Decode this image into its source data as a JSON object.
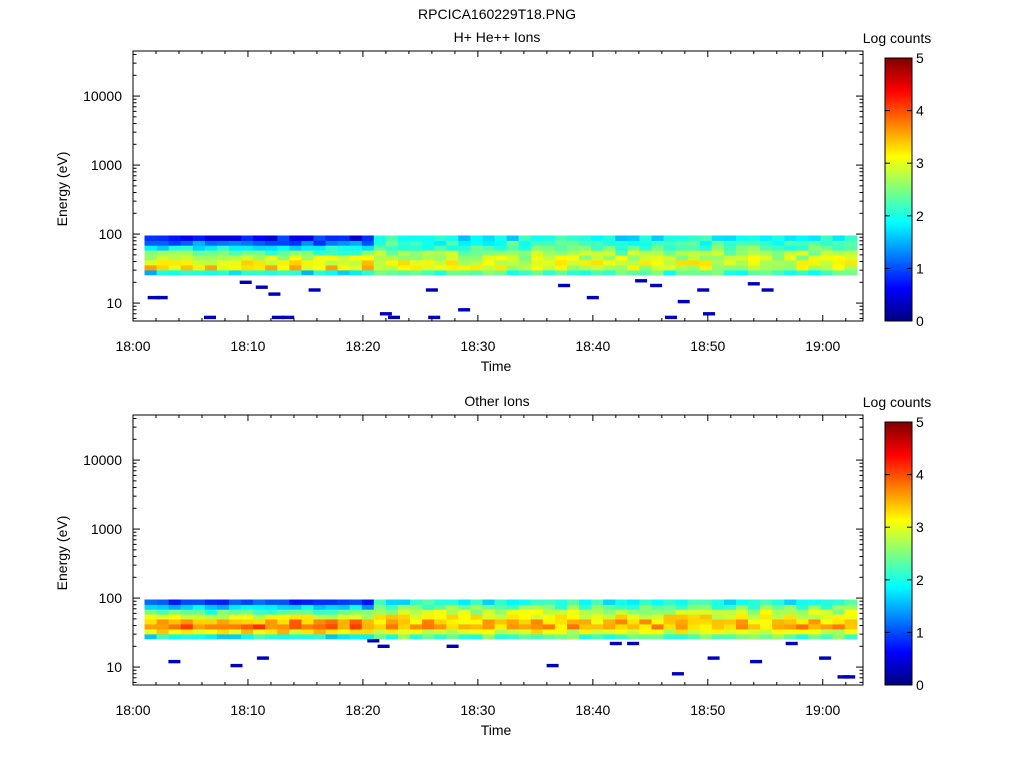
{
  "figure_title": "RPCICA160229T18.PNG",
  "colormap": {
    "stops": [
      "#00007f",
      "#0000ff",
      "#007fff",
      "#00ffff",
      "#7fff7f",
      "#ffff00",
      "#ff7f00",
      "#ff0000",
      "#7f0000"
    ]
  },
  "chart_data": [
    {
      "type": "heatmap",
      "title": "H+ He++ Ions",
      "xlabel": "Time",
      "ylabel": "Energy (eV)",
      "colorbar_label": "Log counts",
      "x_ticks": [
        "18:00",
        "18:10",
        "18:20",
        "18:30",
        "18:40",
        "18:50",
        "19:00"
      ],
      "xlim_minutes": [
        0,
        63.5
      ],
      "y_scale": "log",
      "y_ticks": [
        10,
        100,
        1000,
        10000
      ],
      "y_tick_labels": [
        "10",
        "100",
        "1000",
        "10000"
      ],
      "ylim": [
        5.5,
        45000
      ],
      "color_range": [
        0,
        5
      ],
      "colorbar_ticks": [
        "0",
        "1",
        "2",
        "3",
        "4",
        "5"
      ],
      "time_start_minutes": 1,
      "time_end_minutes": 63.5,
      "time_step_minutes": 1.05,
      "energy_bins_eV": [
        28,
        33,
        39,
        46,
        54,
        64,
        75,
        88
      ],
      "band_profile_early": [
        1.8,
        3.3,
        3.1,
        2.8,
        2.4,
        1.8,
        1.2,
        0.7
      ],
      "band_profile_late": [
        2.2,
        2.9,
        3.0,
        2.8,
        2.6,
        2.3,
        2.1,
        1.9
      ],
      "sporadic_points": [
        {
          "t": 1.8,
          "e": 12,
          "v": 0.3
        },
        {
          "t": 2.5,
          "e": 12,
          "v": 0.3
        },
        {
          "t": 6.7,
          "e": 6.2,
          "v": 0.3
        },
        {
          "t": 9.8,
          "e": 20,
          "v": 0.3
        },
        {
          "t": 11.2,
          "e": 17,
          "v": 0.3
        },
        {
          "t": 12.3,
          "e": 13.5,
          "v": 0.3
        },
        {
          "t": 12.6,
          "e": 6.2,
          "v": 0.3
        },
        {
          "t": 13.5,
          "e": 6.2,
          "v": 0.3
        },
        {
          "t": 15.8,
          "e": 15.5,
          "v": 0.3
        },
        {
          "t": 22.0,
          "e": 7.0,
          "v": 0.3
        },
        {
          "t": 22.7,
          "e": 6.2,
          "v": 0.3
        },
        {
          "t": 26.0,
          "e": 15.5,
          "v": 0.3
        },
        {
          "t": 26.2,
          "e": 6.2,
          "v": 0.3
        },
        {
          "t": 28.8,
          "e": 8.0,
          "v": 0.3
        },
        {
          "t": 37.5,
          "e": 18,
          "v": 0.3
        },
        {
          "t": 40.0,
          "e": 12,
          "v": 0.3
        },
        {
          "t": 44.2,
          "e": 21,
          "v": 0.3
        },
        {
          "t": 45.5,
          "e": 18,
          "v": 0.3
        },
        {
          "t": 46.8,
          "e": 6.2,
          "v": 0.3
        },
        {
          "t": 47.9,
          "e": 10.5,
          "v": 0.3
        },
        {
          "t": 49.6,
          "e": 15.5,
          "v": 0.3
        },
        {
          "t": 50.1,
          "e": 7.0,
          "v": 0.3
        },
        {
          "t": 54.0,
          "e": 19,
          "v": 0.3
        },
        {
          "t": 55.2,
          "e": 15.5,
          "v": 0.3
        }
      ]
    },
    {
      "type": "heatmap",
      "title": "Other Ions",
      "xlabel": "Time",
      "ylabel": "Energy (eV)",
      "colorbar_label": "Log counts",
      "x_ticks": [
        "18:00",
        "18:10",
        "18:20",
        "18:30",
        "18:40",
        "18:50",
        "19:00"
      ],
      "xlim_minutes": [
        0,
        63.5
      ],
      "y_scale": "log",
      "y_ticks": [
        10,
        100,
        1000,
        10000
      ],
      "y_tick_labels": [
        "10",
        "100",
        "1000",
        "10000"
      ],
      "ylim": [
        5.5,
        45000
      ],
      "color_range": [
        0,
        5
      ],
      "colorbar_ticks": [
        "0",
        "1",
        "2",
        "3",
        "4",
        "5"
      ],
      "time_start_minutes": 1,
      "time_end_minutes": 63.5,
      "time_step_minutes": 1.05,
      "energy_bins_eV": [
        28,
        33,
        39,
        46,
        54,
        64,
        75,
        88
      ],
      "band_profile_early": [
        1.9,
        3.2,
        3.8,
        3.6,
        3.0,
        2.3,
        1.6,
        0.9
      ],
      "band_profile_late": [
        2.3,
        3.0,
        3.5,
        3.4,
        3.1,
        2.8,
        2.4,
        2.0
      ],
      "sporadic_points": [
        {
          "t": 3.6,
          "e": 12,
          "v": 0.3
        },
        {
          "t": 9.0,
          "e": 10.5,
          "v": 0.3
        },
        {
          "t": 11.3,
          "e": 13.5,
          "v": 0.3
        },
        {
          "t": 20.9,
          "e": 24,
          "v": 0.3
        },
        {
          "t": 21.8,
          "e": 20,
          "v": 0.3
        },
        {
          "t": 27.8,
          "e": 20,
          "v": 0.3
        },
        {
          "t": 36.5,
          "e": 10.5,
          "v": 0.3
        },
        {
          "t": 42.0,
          "e": 22,
          "v": 0.3
        },
        {
          "t": 43.5,
          "e": 22,
          "v": 0.3
        },
        {
          "t": 47.4,
          "e": 8.0,
          "v": 0.3
        },
        {
          "t": 50.5,
          "e": 13.5,
          "v": 0.3
        },
        {
          "t": 54.2,
          "e": 12,
          "v": 0.3
        },
        {
          "t": 57.3,
          "e": 22,
          "v": 0.3
        },
        {
          "t": 60.2,
          "e": 13.5,
          "v": 0.3
        },
        {
          "t": 61.8,
          "e": 7.2,
          "v": 0.3
        },
        {
          "t": 62.3,
          "e": 7.2,
          "v": 0.3
        }
      ]
    }
  ]
}
